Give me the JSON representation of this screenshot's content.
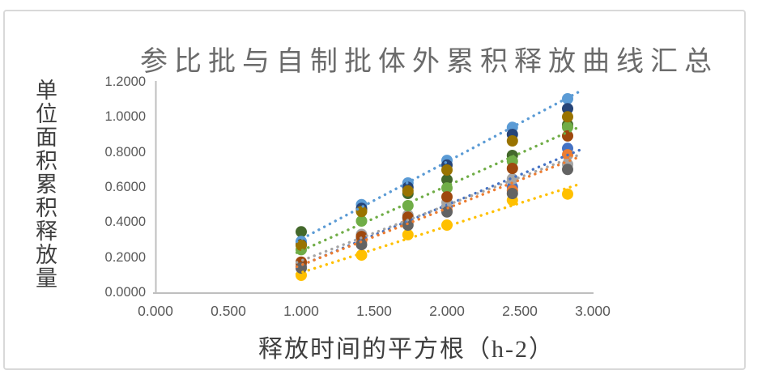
{
  "chart_data": {
    "type": "scatter",
    "title": "参比批与自制批体外累积释放曲线汇总",
    "xlabel": "释放时间的平方根（h-2）",
    "ylabel": "单位面积累积释放量",
    "xlim": [
      0,
      3.0
    ],
    "ylim": [
      0,
      1.2
    ],
    "grid": false,
    "legend": "none",
    "x_ticks": [
      "0.000",
      "0.500",
      "1.000",
      "1.500",
      "2.000",
      "2.500",
      "3.000"
    ],
    "y_ticks": [
      "1.2000",
      "1.0000",
      "0.8000",
      "0.6000",
      "0.4000",
      "0.2000",
      "0.0000"
    ],
    "x": [
      1.0,
      1.414,
      1.732,
      2.0,
      2.449,
      2.828
    ],
    "series": [
      {
        "name": "dark-green",
        "color": "#43682B",
        "marker": "circle",
        "trendline": false,
        "values": [
          0.345,
          0.472,
          0.563,
          0.642,
          0.78,
          0.955
        ]
      },
      {
        "name": "blue",
        "color": "#4472C4",
        "marker": "circle",
        "trendline": true,
        "values": [
          0.152,
          0.305,
          0.422,
          0.489,
          0.6,
          0.82
        ]
      },
      {
        "name": "orange",
        "color": "#ED7D31",
        "marker": "circle",
        "trendline": true,
        "values": [
          0.163,
          0.292,
          0.4,
          0.466,
          0.58,
          0.784
        ]
      },
      {
        "name": "gray",
        "color": "#A5A5A5",
        "marker": "circle",
        "trendline": true,
        "values": [
          0.14,
          0.33,
          0.44,
          0.512,
          0.646,
          0.729
        ]
      },
      {
        "name": "yellow",
        "color": "#FFC000",
        "marker": "circle",
        "trendline": true,
        "values": [
          0.097,
          0.212,
          0.328,
          0.383,
          0.525,
          0.56
        ]
      },
      {
        "name": "light-blue",
        "color": "#5B9BD5",
        "marker": "circle",
        "trendline": true,
        "values": [
          0.29,
          0.5,
          0.623,
          0.752,
          0.94,
          1.103
        ]
      },
      {
        "name": "green",
        "color": "#70AD47",
        "marker": "circle",
        "trendline": true,
        "values": [
          0.243,
          0.406,
          0.494,
          0.595,
          0.747,
          0.941
        ]
      },
      {
        "name": "navy",
        "color": "#264478",
        "marker": "circle",
        "trendline": false,
        "values": [
          0.272,
          0.478,
          0.598,
          0.725,
          0.9,
          1.047
        ]
      },
      {
        "name": "brown",
        "color": "#9E480E",
        "marker": "circle",
        "trendline": false,
        "values": [
          0.172,
          0.318,
          0.428,
          0.544,
          0.706,
          0.891
        ]
      },
      {
        "name": "dark-gray",
        "color": "#636363",
        "marker": "circle",
        "trendline": false,
        "values": [
          0.138,
          0.272,
          0.383,
          0.458,
          0.563,
          0.7
        ]
      },
      {
        "name": "dark-gold",
        "color": "#997300",
        "marker": "circle",
        "trendline": false,
        "values": [
          0.268,
          0.46,
          0.578,
          0.697,
          0.863,
          1.0
        ]
      }
    ]
  },
  "colors": {
    "frame_border": "#d9d9d9",
    "axis_line": "#bfbfbf",
    "title_text": "#6b6b6b",
    "axis_title_text": "#3f3f3f",
    "tick_text": "#595959"
  }
}
